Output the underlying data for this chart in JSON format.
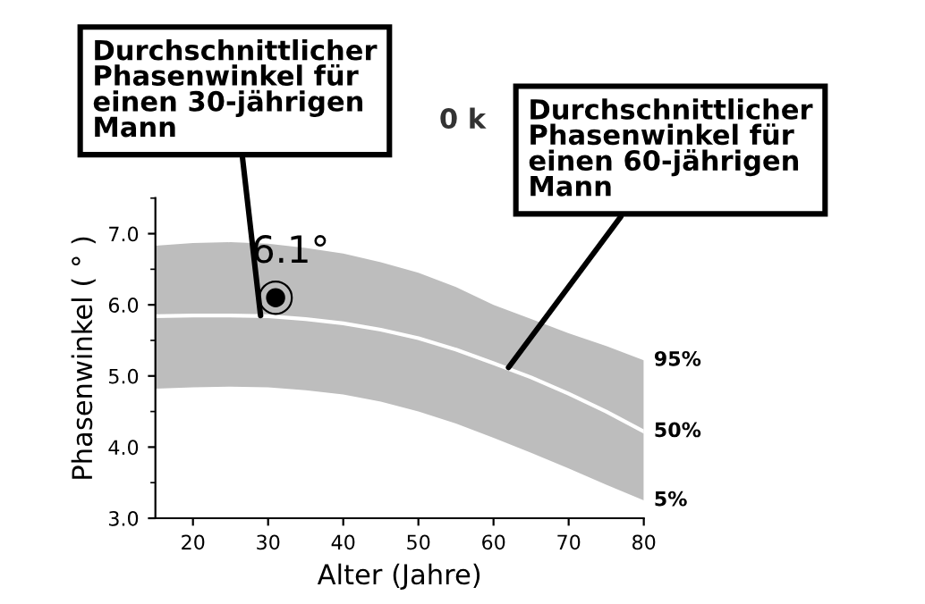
{
  "chart_data": {
    "type": "line",
    "title": "0 k",
    "xlabel": "Alter (Jahre)",
    "ylabel": "Phasenwinkel ( ° )",
    "xlim": [
      15,
      80
    ],
    "xticks": [
      20,
      30,
      40,
      50,
      60,
      70,
      80
    ],
    "ylim": [
      3.0,
      7.5
    ],
    "yticks": [
      {
        "value": 3,
        "label": "3.0"
      },
      {
        "value": 4,
        "label": "4.0"
      },
      {
        "value": 5,
        "label": "5.0"
      },
      {
        "value": 6,
        "label": "6.0"
      },
      {
        "value": 7,
        "label": "7.0"
      }
    ],
    "grid": false,
    "series": [
      {
        "color": "#ffffff",
        "x": [
          15,
          20,
          25,
          30,
          35,
          40,
          45,
          50,
          55,
          60,
          65,
          70,
          75,
          80
        ],
        "values": [
          5.84,
          5.85,
          5.85,
          5.84,
          5.8,
          5.74,
          5.65,
          5.53,
          5.37,
          5.18,
          4.98,
          4.75,
          4.5,
          4.22
        ],
        "lower": [
          4.82,
          4.84,
          4.85,
          4.84,
          4.8,
          4.74,
          4.64,
          4.5,
          4.33,
          4.13,
          3.92,
          3.7,
          3.47,
          3.25
        ],
        "upper": [
          6.83,
          6.87,
          6.88,
          6.86,
          6.8,
          6.72,
          6.6,
          6.45,
          6.25,
          6.0,
          5.8,
          5.6,
          5.42,
          5.22
        ]
      },
      {
        "type": "scatter",
        "color": "#000000",
        "marker": "circle",
        "x": [
          31
        ],
        "values": [
          6.1
        ],
        "value_labels": [
          "6.1°"
        ]
      }
    ],
    "annotations": [
      {
        "text": "95%",
        "x": 80,
        "y": 5.22
      },
      {
        "text": "50%",
        "x": 80,
        "y": 4.22
      },
      {
        "text": "5%",
        "x": 80,
        "y": 3.25
      },
      {
        "text": "Durchschnittlicher\nPhasenwinkel für\neinen 30-jährigen\nMann",
        "x": 29,
        "y": 5.85
      },
      {
        "text": "Durchschnittlicher\nPhasenwinkel für\neinen 60-jährigen\nMann",
        "x": 62,
        "y": 5.12
      }
    ]
  }
}
